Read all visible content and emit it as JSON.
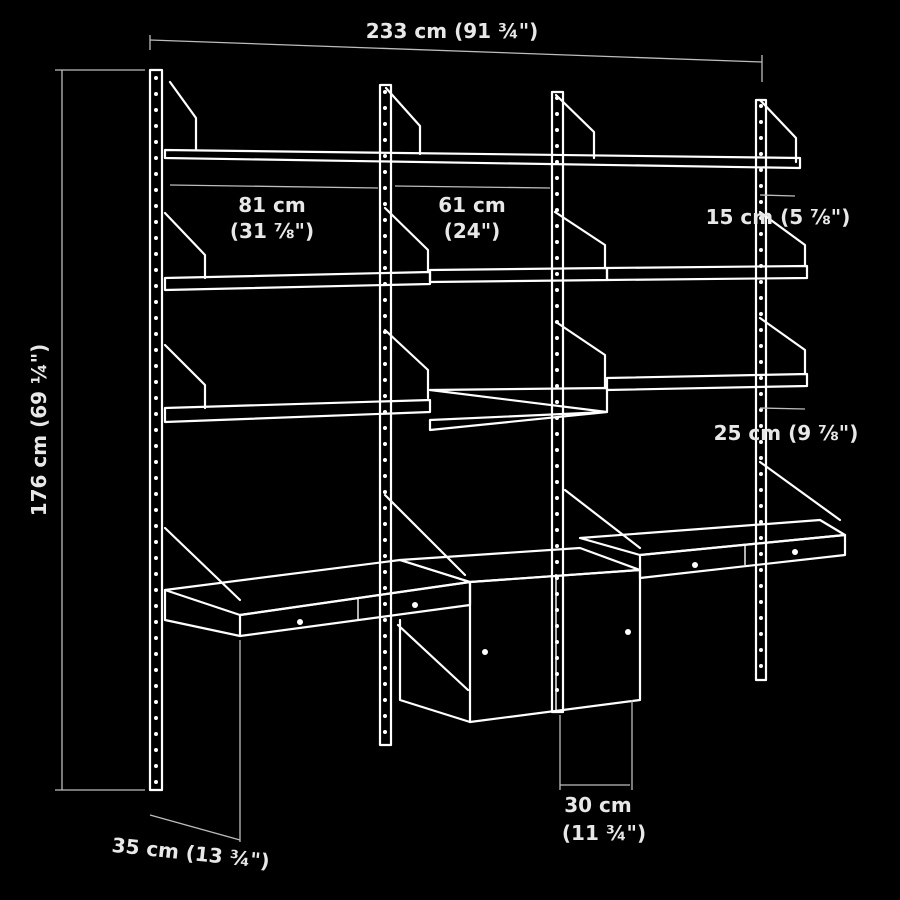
{
  "dimensions": {
    "total_width": "233 cm (91 ¾\")",
    "total_height": "176 cm (69 ¼\")",
    "section_width_1_cm": "81 cm",
    "section_width_1_in": "(31 ⅞\")",
    "section_width_2_cm": "61 cm",
    "section_width_2_in": "(24\")",
    "shelf_depth_small": "15 cm (5 ⅞\")",
    "shelf_depth_medium": "25 cm (9 ⅞\")",
    "desk_depth": "35 cm (13 ¾\")",
    "cabinet_depth_cm": "30 cm",
    "cabinet_depth_in": "(11 ¾\")"
  },
  "colors": {
    "background": "#000000",
    "lines": "#ffffff",
    "text": "#e8e8e8"
  }
}
